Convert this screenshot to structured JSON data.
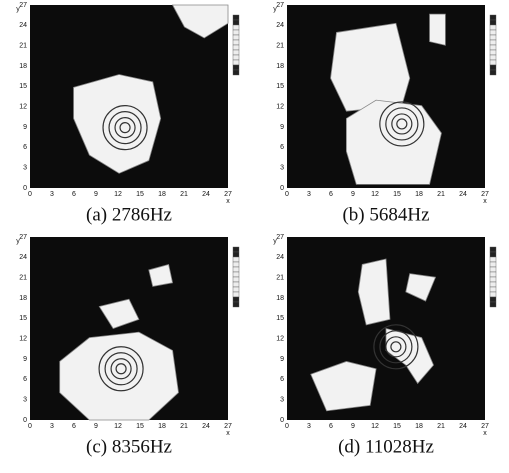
{
  "axis_labels": {
    "x": "x",
    "y": "y"
  },
  "x_ticks": [
    0,
    3,
    6,
    9,
    12,
    15,
    18,
    21,
    24,
    27
  ],
  "y_ticks": [
    0,
    3,
    6,
    9,
    12,
    15,
    18,
    21,
    24,
    27
  ],
  "panels": [
    {
      "caption": "(a) 2786Hz"
    },
    {
      "caption": "(b) 5684Hz"
    },
    {
      "caption": "(c) 8356Hz"
    },
    {
      "caption": "(d) 11028Hz"
    }
  ]
}
